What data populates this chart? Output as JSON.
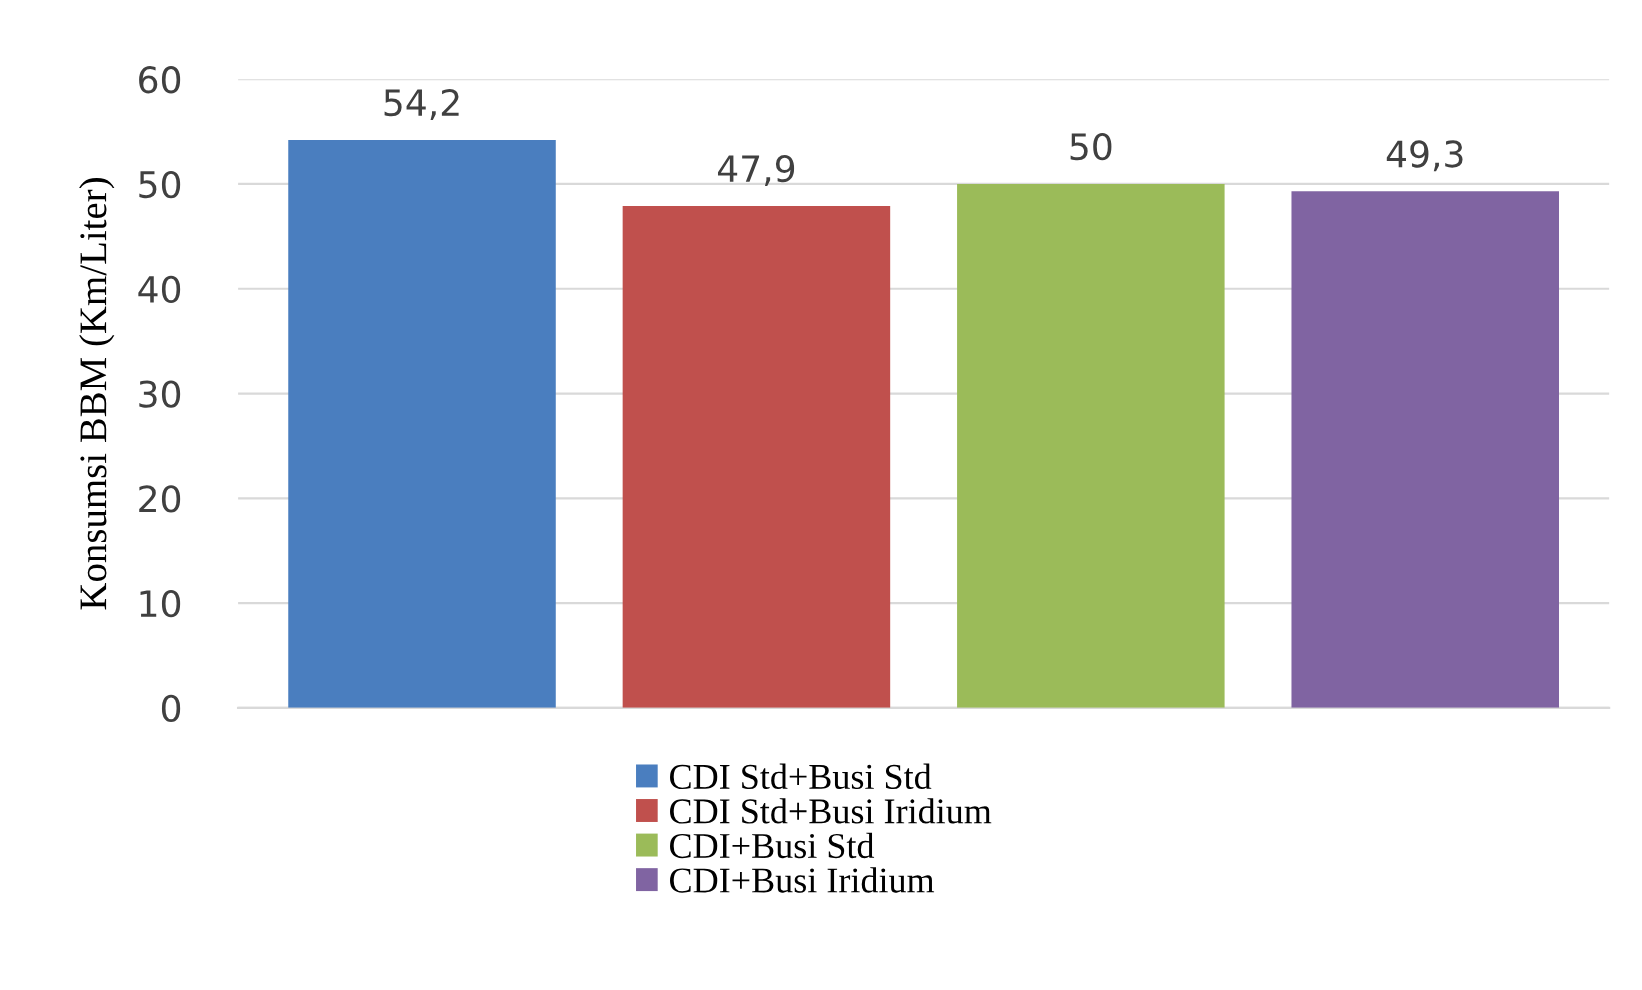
{
  "chart_data": {
    "type": "bar",
    "ylabel": "Konsumsi BBM (Km/Liter)",
    "categories": [
      null,
      null,
      null,
      null
    ],
    "series": [
      {
        "name": "CDI Std+Busi Std",
        "color": "#4a7ebf",
        "values": [
          54.2,
          null,
          null,
          null
        ]
      },
      {
        "name": "CDI Std+Busi Iridium",
        "color": "#c0504d",
        "values": [
          null,
          47.9,
          null,
          null
        ]
      },
      {
        "name": "CDI+Busi Std",
        "color": "#9bbb59",
        "values": [
          null,
          null,
          50,
          null
        ]
      },
      {
        "name": "CDI+Busi Iridium",
        "color": "#8064a2",
        "values": [
          null,
          null,
          null,
          49.3
        ]
      }
    ],
    "value_labels": [
      [
        "54,2",
        null,
        null,
        null
      ],
      [
        null,
        "47,9",
        null,
        null
      ],
      [
        null,
        null,
        "50",
        null
      ],
      [
        null,
        null,
        null,
        "49,3"
      ]
    ],
    "ylim": [
      0,
      60
    ],
    "yticks": [
      0,
      10,
      20,
      30,
      40,
      50,
      60
    ],
    "grid": "y",
    "legend": "bottom"
  }
}
